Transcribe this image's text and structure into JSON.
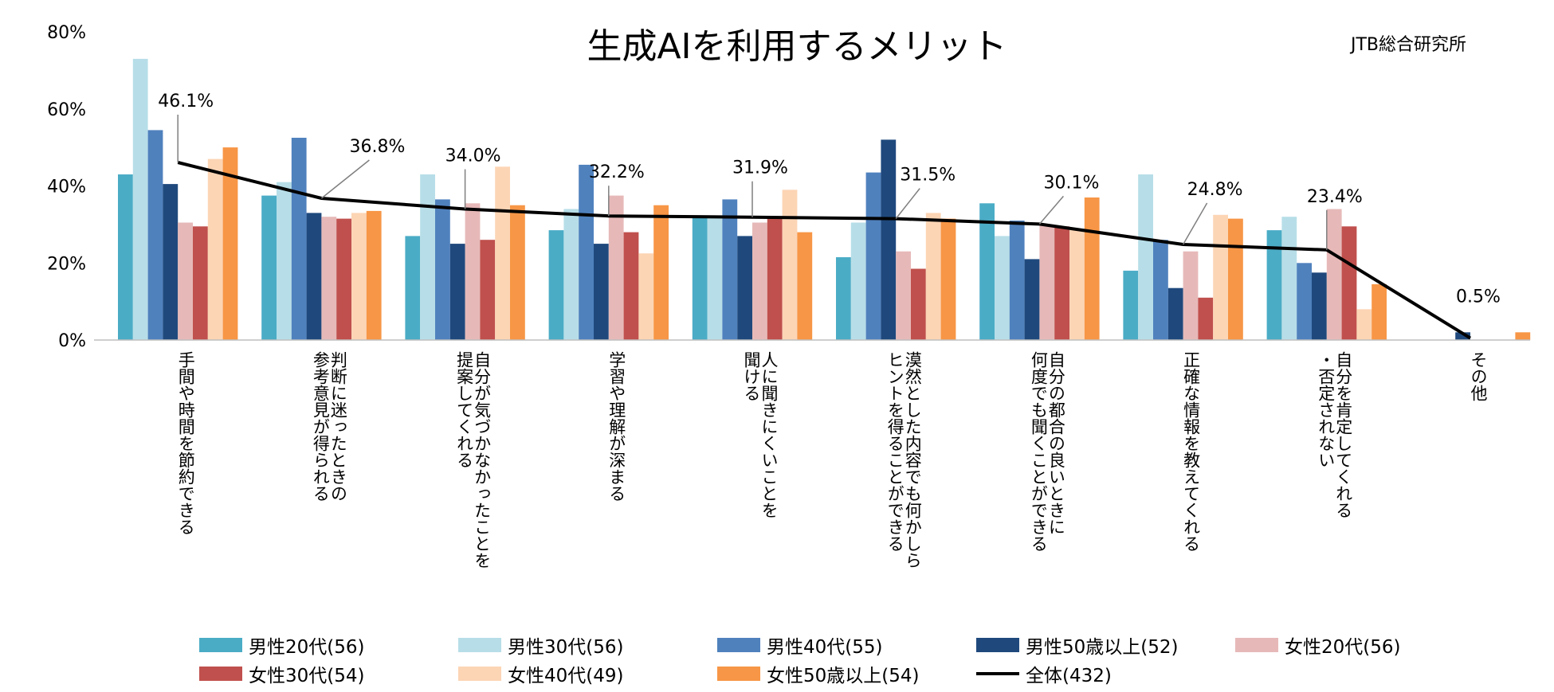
{
  "title": "生成AIを利用するメリット",
  "source": "JTB総合研究所",
  "colors": {
    "male20": "#4bacc6",
    "male30": "#b7dee8",
    "male40": "#4f81bd",
    "male50": "#1f497d",
    "female20": "#e6b9b8",
    "female30": "#c0504d",
    "female40": "#fcd5b5",
    "female50": "#f79646",
    "total": "#000000"
  },
  "chart_data": {
    "type": "bar",
    "categories": [
      "手間や時間を節約できる",
      "判断に迷ったときの\n参考意見が得られる",
      "自分が気づかなかったことを\n提案してくれる",
      "学習や理解が深まる",
      "人に聞きにくいことを\n聞ける",
      "漠然とした内容でも何かしら\nヒントを得ることができる",
      "自分の都合の良いときに\n何度でも聞くことができる",
      "正確な情報を教えてくれる",
      "自分を肯定してくれる\n・否定されない",
      "その他"
    ],
    "series": [
      {
        "name": "男性20代(56)",
        "color_key": "male20",
        "values": [
          43,
          37.5,
          27,
          28.5,
          32,
          21.5,
          35.5,
          18,
          28.5,
          0
        ]
      },
      {
        "name": "男性30代(56)",
        "color_key": "male30",
        "values": [
          73,
          41,
          43,
          34,
          32,
          30.5,
          27,
          43,
          32,
          0
        ]
      },
      {
        "name": "男性40代(55)",
        "color_key": "male40",
        "values": [
          54.5,
          52.5,
          36.5,
          45.5,
          36.5,
          43.5,
          31,
          26,
          20,
          0
        ]
      },
      {
        "name": "男性50歳以上(52)",
        "color_key": "male50",
        "values": [
          40.5,
          33,
          25,
          25,
          27,
          52,
          21,
          13.5,
          17.5,
          2
        ]
      },
      {
        "name": "女性20代(56)",
        "color_key": "female20",
        "values": [
          30.5,
          32,
          35.5,
          37.5,
          30.5,
          23,
          30,
          23,
          34,
          0
        ]
      },
      {
        "name": "女性30代(54)",
        "color_key": "female30",
        "values": [
          29.5,
          31.5,
          26,
          28,
          32,
          18.5,
          29.5,
          11,
          29.5,
          0
        ]
      },
      {
        "name": "女性40代(49)",
        "color_key": "female40",
        "values": [
          47,
          33,
          45,
          22.5,
          39,
          33,
          28.5,
          32.5,
          8,
          0
        ]
      },
      {
        "name": "女性50歳以上(54)",
        "color_key": "female50",
        "values": [
          50,
          33.5,
          35,
          35,
          28,
          31.5,
          37,
          31.5,
          14.5,
          2
        ]
      }
    ],
    "line": {
      "name": "全体(432)",
      "values": [
        46.1,
        36.8,
        34.0,
        32.2,
        31.9,
        31.5,
        30.1,
        24.8,
        23.4,
        0.5
      ],
      "labels": [
        "46.1%",
        "36.8%",
        "34.0%",
        "32.2%",
        "31.9%",
        "31.5%",
        "30.1%",
        "24.8%",
        "23.4%",
        "0.5%"
      ]
    },
    "y_ticks": [
      "0%",
      "20%",
      "40%",
      "60%",
      "80%"
    ],
    "ylim": [
      0,
      80
    ],
    "legend_position": "bottom",
    "grid": false
  }
}
